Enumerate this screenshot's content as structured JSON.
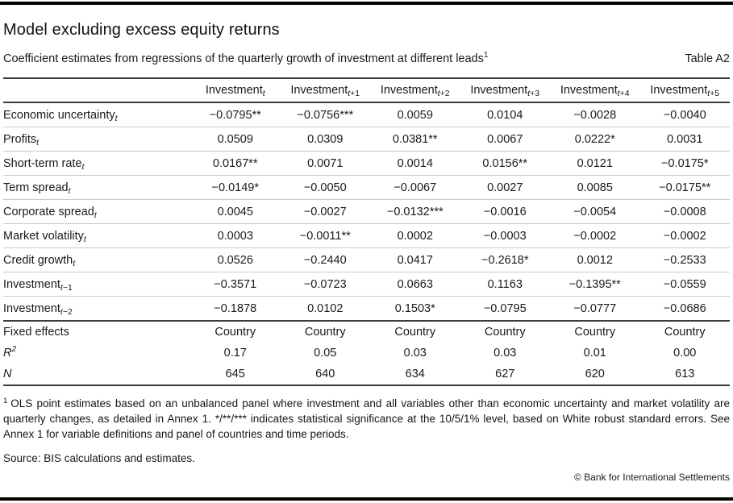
{
  "page": {
    "title": "Model excluding excess equity returns",
    "subtitle": "Coefficient estimates from regressions of the quarterly growth of investment at different leads",
    "subtitle_footnote_marker": "1",
    "table_label": "Table A2"
  },
  "appearance": {
    "text_color": "#1a1a1a",
    "heavy_rule_color": "#000000",
    "medium_rule_color": "#3b3b3b",
    "row_separator_color": "#c9c9c9",
    "background_color": "#ffffff"
  },
  "table": {
    "header": [
      {
        "base": "Investment",
        "sub_var": "t",
        "sub_rest": ""
      },
      {
        "base": "Investment",
        "sub_var": "t",
        "sub_rest": "+1"
      },
      {
        "base": "Investment",
        "sub_var": "t",
        "sub_rest": "+2"
      },
      {
        "base": "Investment",
        "sub_var": "t",
        "sub_rest": "+3"
      },
      {
        "base": "Investment",
        "sub_var": "t",
        "sub_rest": "+4"
      },
      {
        "base": "Investment",
        "sub_var": "t",
        "sub_rest": "+5"
      }
    ],
    "rows": [
      {
        "label": {
          "base": "Economic uncertainty",
          "sub_var": "t",
          "sub_rest": ""
        },
        "values": [
          "−0.0795**",
          "−0.0756***",
          "0.0059",
          "0.0104",
          "−0.0028",
          "−0.0040"
        ]
      },
      {
        "label": {
          "base": "Profits",
          "sub_var": "t",
          "sub_rest": ""
        },
        "values": [
          "0.0509",
          "0.0309",
          "0.0381**",
          "0.0067",
          "0.0222*",
          "0.0031"
        ]
      },
      {
        "label": {
          "base": "Short-term rate",
          "sub_var": "t",
          "sub_rest": ""
        },
        "values": [
          "0.0167**",
          "0.0071",
          "0.0014",
          "0.0156**",
          "0.0121",
          "−0.0175*"
        ]
      },
      {
        "label": {
          "base": "Term spread",
          "sub_var": "t",
          "sub_rest": ""
        },
        "values": [
          "−0.0149*",
          "−0.0050",
          "−0.0067",
          "0.0027",
          "0.0085",
          "−0.0175**"
        ]
      },
      {
        "label": {
          "base": "Corporate spread",
          "sub_var": "t",
          "sub_rest": ""
        },
        "values": [
          "0.0045",
          "−0.0027",
          "−0.0132***",
          "−0.0016",
          "−0.0054",
          "−0.0008"
        ]
      },
      {
        "label": {
          "base": "Market volatility",
          "sub_var": "t",
          "sub_rest": ""
        },
        "values": [
          "0.0003",
          "−0.0011**",
          "0.0002",
          "−0.0003",
          "−0.0002",
          "−0.0002"
        ]
      },
      {
        "label": {
          "base": "Credit growth",
          "sub_var": "t",
          "sub_rest": ""
        },
        "values": [
          "0.0526",
          "−0.2440",
          "0.0417",
          "−0.2618*",
          "0.0012",
          "−0.2533"
        ]
      },
      {
        "label": {
          "base": "Investment",
          "sub_var": "t",
          "sub_rest": "−1"
        },
        "values": [
          "−0.3571",
          "−0.0723",
          "0.0663",
          "0.1163",
          "−0.1395**",
          "−0.0559"
        ]
      },
      {
        "label": {
          "base": "Investment",
          "sub_var": "t",
          "sub_rest": "−2"
        },
        "values": [
          "−0.1878",
          "0.0102",
          "0.1503*",
          "−0.0795",
          "−0.0777",
          "−0.0686"
        ]
      }
    ],
    "summary_rows": [
      {
        "label": {
          "base": "Fixed effects",
          "italic": false,
          "sup": ""
        },
        "values": [
          "Country",
          "Country",
          "Country",
          "Country",
          "Country",
          "Country"
        ]
      },
      {
        "label": {
          "base": "R",
          "italic": true,
          "sup": "2"
        },
        "values": [
          "0.17",
          "0.05",
          "0.03",
          "0.03",
          "0.01",
          "0.00"
        ]
      },
      {
        "label": {
          "base": "N",
          "italic": true,
          "sup": ""
        },
        "values": [
          "645",
          "640",
          "634",
          "627",
          "620",
          "613"
        ]
      }
    ]
  },
  "footnotes": {
    "marker": "1",
    "text": "OLS point estimates based on an unbalanced panel where investment and all variables other than economic uncertainty and market volatility are quarterly changes, as detailed in Annex 1. */**/*** indicates statistical significance at the 10/5/1% level, based on White robust standard errors. See Annex 1 for variable definitions and panel of countries and time periods.",
    "source": "Source: BIS calculations and estimates.",
    "copyright": "© Bank for International Settlements"
  }
}
